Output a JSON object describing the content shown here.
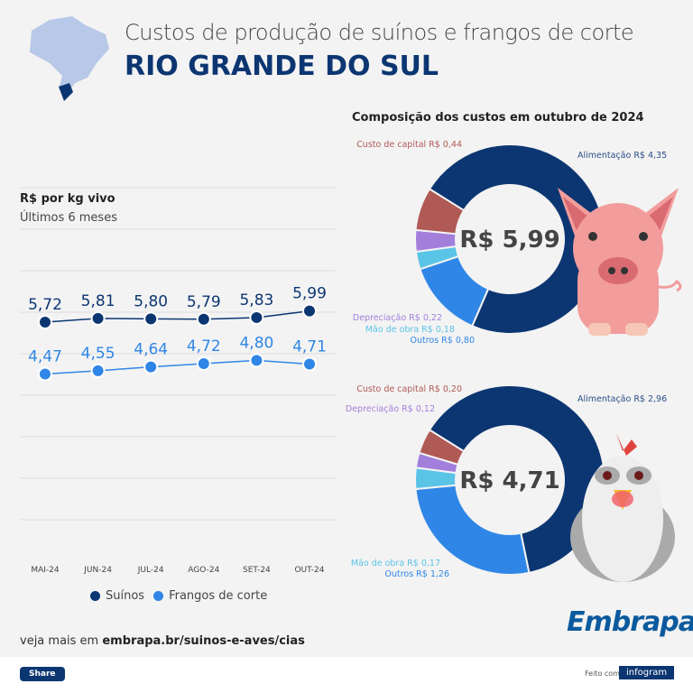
{
  "header": {
    "title": "Custos de produção de suínos e frangos de corte",
    "state": "RIO GRANDE DO SUL"
  },
  "composition_title": "Composição dos custos em outubro de 2024",
  "footer": {
    "more_prefix": "veja mais em",
    "more_link": "embrapa.br/suinos-e-aves/cias",
    "share": "Share",
    "made_with": "Feito com",
    "infogram": "infogram",
    "logo": "Embrapa"
  },
  "chart_data": [
    {
      "type": "line",
      "title": "R$ por kg vivo",
      "subtitle": "Últimos 6 meses",
      "categories": [
        "MAI-24",
        "JUN-24",
        "JUL-24",
        "AGO-24",
        "SET-24",
        "OUT-24"
      ],
      "series": [
        {
          "name": "Suínos",
          "color": "#0c3672",
          "values": [
            5.72,
            5.81,
            5.8,
            5.79,
            5.83,
            5.99
          ]
        },
        {
          "name": "Frangos de corte",
          "color": "#2f86e6",
          "values": [
            4.47,
            4.55,
            4.64,
            4.72,
            4.8,
            4.71
          ]
        }
      ],
      "grid": true,
      "legend": "bottom"
    },
    {
      "type": "pie",
      "center_label": "R$ 5,99",
      "slices": [
        {
          "label": "Alimentação R$ 4,35",
          "value": 4.35,
          "color": "#0c3672"
        },
        {
          "label": "Outros R$ 0,80",
          "value": 0.8,
          "color": "#2f86e6"
        },
        {
          "label": "Mão de obra R$ 0,18",
          "value": 0.18,
          "color": "#5ac4e6"
        },
        {
          "label": "Depreciação R$ 0,22",
          "value": 0.22,
          "color": "#a37fdc"
        },
        {
          "label": "Custo de capital R$ 0,44",
          "value": 0.44,
          "color": "#b05a55"
        }
      ]
    },
    {
      "type": "pie",
      "center_label": "R$ 4,71",
      "slices": [
        {
          "label": "Alimentação R$ 2,96",
          "value": 2.96,
          "color": "#0c3672"
        },
        {
          "label": "Outros R$ 1,26",
          "value": 1.26,
          "color": "#2f86e6"
        },
        {
          "label": "Mão de obra R$ 0,17",
          "value": 0.17,
          "color": "#5ac4e6"
        },
        {
          "label": "Depreciação R$ 0,12",
          "value": 0.12,
          "color": "#a37fdc"
        },
        {
          "label": "Custo de capital R$ 0,20",
          "value": 0.2,
          "color": "#b05a55"
        }
      ]
    }
  ]
}
